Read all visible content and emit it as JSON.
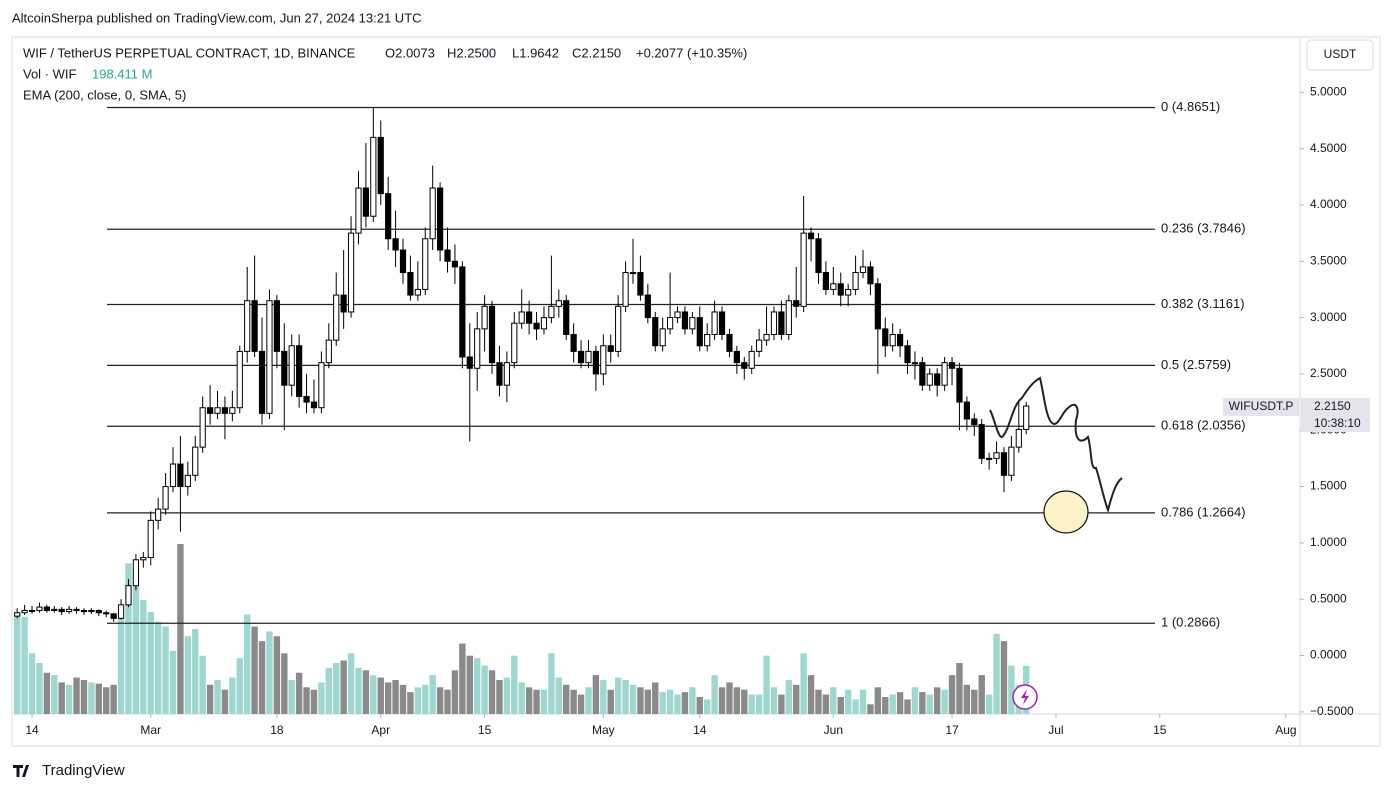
{
  "header": {
    "byline": "AltcoinSherpa published on TradingView.com, Jun 27, 2024 13:21 UTC",
    "brand": "TradingView"
  },
  "legend": {
    "symbol": "WIF / TetherUS PERPETUAL CONTRACT, 1D, BINANCE",
    "open": "O2.0073",
    "high": "H2.2500",
    "low": "L1.9642",
    "close": "C2.2150",
    "change": "+0.2077 (+10.35%)",
    "volume_name": "Vol · WIF",
    "volume_value": "198.411 M",
    "ema": "EMA (200, close, 0, SMA, 5)"
  },
  "price_axis": {
    "currency": "USDT",
    "symbol_label": "WIFUSDT.P",
    "price_label": "2.2150",
    "countdown": "10:38:10"
  },
  "chart_data": {
    "type": "candlestick",
    "up_color": "#ffffff",
    "down_color": "#000000",
    "wick_color": "#000000",
    "volume_up_color": "#9fd6cf",
    "volume_down_color": "#8a8a8a",
    "xlim": [
      -2.7,
      170.9
    ],
    "xticks": [
      {
        "value": 0,
        "label": "14"
      },
      {
        "value": 16,
        "label": "Mar"
      },
      {
        "value": 33,
        "label": "18"
      },
      {
        "value": 47,
        "label": "Apr"
      },
      {
        "value": 61,
        "label": "15"
      },
      {
        "value": 77,
        "label": "May"
      },
      {
        "value": 90,
        "label": "14"
      },
      {
        "value": 108,
        "label": "Jun"
      },
      {
        "value": 124,
        "label": "17"
      },
      {
        "value": 138,
        "label": "Jul"
      },
      {
        "value": 152,
        "label": "15"
      },
      {
        "value": 169,
        "label": "Aug"
      }
    ],
    "ylim": [
      -0.519,
      5.491
    ],
    "yticks": [
      {
        "value": 5,
        "label": "5.0000"
      },
      {
        "value": 4.5,
        "label": "4.5000"
      },
      {
        "value": 4,
        "label": "4.0000"
      },
      {
        "value": 3.5,
        "label": "3.5000"
      },
      {
        "value": 3,
        "label": "3.0000"
      },
      {
        "value": 2.5,
        "label": "2.5000"
      },
      {
        "value": 2,
        "label": "2.0000"
      },
      {
        "value": 1.5,
        "label": "1.5000"
      },
      {
        "value": 1,
        "label": "1.0000"
      },
      {
        "value": 0.5,
        "label": "0.5000"
      },
      {
        "value": 0,
        "label": "0.0000"
      },
      {
        "value": -0.5,
        "label": "−0.5000"
      }
    ],
    "fib_levels": [
      {
        "value": 4.8651,
        "label": "0 (4.8651)"
      },
      {
        "value": 3.7846,
        "label": "0.236 (3.7846)"
      },
      {
        "value": 3.1161,
        "label": "0.382 (3.1161)"
      },
      {
        "value": 2.5759,
        "label": "0.5 (2.5759)"
      },
      {
        "value": 2.0356,
        "label": "0.618 (2.0356)"
      },
      {
        "value": 1.2664,
        "label": "0.786 (1.2664)"
      },
      {
        "value": 0.2866,
        "label": "1 (0.2866)"
      }
    ],
    "x": [
      -2,
      -1,
      0,
      1,
      2,
      3,
      4,
      5,
      6,
      7,
      8,
      9,
      10,
      11,
      12,
      13,
      14,
      15,
      16,
      17,
      18,
      19,
      20,
      21,
      22,
      23,
      24,
      25,
      26,
      27,
      28,
      29,
      30,
      31,
      32,
      33,
      34,
      35,
      36,
      37,
      38,
      39,
      40,
      41,
      42,
      43,
      44,
      45,
      46,
      47,
      48,
      49,
      50,
      51,
      52,
      53,
      54,
      55,
      56,
      57,
      58,
      59,
      60,
      61,
      62,
      63,
      64,
      65,
      66,
      67,
      68,
      69,
      70,
      71,
      72,
      73,
      74,
      75,
      76,
      77,
      78,
      79,
      80,
      81,
      82,
      83,
      84,
      85,
      86,
      87,
      88,
      89,
      90,
      91,
      92,
      93,
      94,
      95,
      96,
      97,
      98,
      99,
      100,
      101,
      102,
      103,
      104,
      105,
      106,
      107,
      108,
      109,
      110,
      111,
      112,
      113,
      114,
      115,
      116,
      117,
      118,
      119,
      120,
      121,
      122,
      123,
      124,
      125,
      126,
      127,
      128,
      129,
      130,
      131,
      132,
      133,
      134
    ],
    "ohlc": [
      [
        0.35,
        0.42,
        0.33,
        0.38
      ],
      [
        0.38,
        0.45,
        0.36,
        0.4
      ],
      [
        0.4,
        0.44,
        0.37,
        0.4
      ],
      [
        0.4,
        0.47,
        0.38,
        0.43
      ],
      [
        0.43,
        0.45,
        0.38,
        0.4
      ],
      [
        0.4,
        0.44,
        0.38,
        0.41
      ],
      [
        0.41,
        0.43,
        0.36,
        0.39
      ],
      [
        0.39,
        0.44,
        0.37,
        0.41
      ],
      [
        0.41,
        0.43,
        0.37,
        0.4
      ],
      [
        0.4,
        0.42,
        0.36,
        0.39
      ],
      [
        0.39,
        0.42,
        0.37,
        0.4
      ],
      [
        0.4,
        0.41,
        0.35,
        0.38
      ],
      [
        0.38,
        0.4,
        0.34,
        0.37
      ],
      [
        0.37,
        0.38,
        0.3,
        0.33
      ],
      [
        0.33,
        0.5,
        0.32,
        0.45
      ],
      [
        0.45,
        0.68,
        0.43,
        0.62
      ],
      [
        0.62,
        0.9,
        0.58,
        0.85
      ],
      [
        0.85,
        0.92,
        0.78,
        0.87
      ],
      [
        0.87,
        1.28,
        0.8,
        1.2
      ],
      [
        1.2,
        1.4,
        1.12,
        1.3
      ],
      [
        1.3,
        1.62,
        1.25,
        1.5
      ],
      [
        1.5,
        1.85,
        1.45,
        1.7
      ],
      [
        1.7,
        1.95,
        1.1,
        1.5
      ],
      [
        1.5,
        1.72,
        1.42,
        1.6
      ],
      [
        1.6,
        1.95,
        1.55,
        1.85
      ],
      [
        1.85,
        2.3,
        1.8,
        2.2
      ],
      [
        2.2,
        2.4,
        2.05,
        2.15
      ],
      [
        2.15,
        2.35,
        2.1,
        2.2
      ],
      [
        2.2,
        2.3,
        1.92,
        2.15
      ],
      [
        2.15,
        2.35,
        2.08,
        2.2
      ],
      [
        2.2,
        2.75,
        2.15,
        2.7
      ],
      [
        2.7,
        3.45,
        2.6,
        3.15
      ],
      [
        3.15,
        3.55,
        2.65,
        2.7
      ],
      [
        2.7,
        3.0,
        2.05,
        2.15
      ],
      [
        2.15,
        3.25,
        2.1,
        3.15
      ],
      [
        3.15,
        3.2,
        2.55,
        2.7
      ],
      [
        2.7,
        2.95,
        2.0,
        2.4
      ],
      [
        2.4,
        2.85,
        2.3,
        2.75
      ],
      [
        2.75,
        2.85,
        2.2,
        2.3
      ],
      [
        2.3,
        2.5,
        2.15,
        2.25
      ],
      [
        2.25,
        2.45,
        2.15,
        2.2
      ],
      [
        2.2,
        2.7,
        2.15,
        2.6
      ],
      [
        2.6,
        2.95,
        2.55,
        2.8
      ],
      [
        2.8,
        3.4,
        2.75,
        3.2
      ],
      [
        3.2,
        3.6,
        2.9,
        3.05
      ],
      [
        3.05,
        3.9,
        3.0,
        3.75
      ],
      [
        3.75,
        4.3,
        3.65,
        4.15
      ],
      [
        4.15,
        4.55,
        3.8,
        3.9
      ],
      [
        3.9,
        4.8651,
        3.85,
        4.6
      ],
      [
        4.6,
        4.75,
        4.0,
        4.1
      ],
      [
        4.1,
        4.25,
        3.6,
        3.7
      ],
      [
        3.7,
        3.95,
        3.45,
        3.6
      ],
      [
        3.6,
        3.7,
        3.3,
        3.4
      ],
      [
        3.4,
        3.55,
        3.15,
        3.2
      ],
      [
        3.2,
        3.5,
        3.15,
        3.25
      ],
      [
        3.25,
        3.8,
        3.2,
        3.7
      ],
      [
        3.7,
        4.35,
        3.6,
        4.15
      ],
      [
        4.15,
        4.2,
        3.5,
        3.6
      ],
      [
        3.6,
        3.8,
        3.4,
        3.5
      ],
      [
        3.5,
        3.65,
        3.3,
        3.45
      ],
      [
        3.45,
        3.5,
        2.55,
        2.65
      ],
      [
        2.65,
        2.95,
        1.9,
        2.55
      ],
      [
        2.55,
        3.05,
        2.35,
        2.9
      ],
      [
        2.9,
        3.2,
        2.7,
        3.1
      ],
      [
        3.1,
        3.15,
        2.5,
        2.6
      ],
      [
        2.6,
        2.75,
        2.3,
        2.4
      ],
      [
        2.4,
        2.7,
        2.25,
        2.6
      ],
      [
        2.6,
        3.05,
        2.55,
        2.95
      ],
      [
        2.95,
        3.25,
        2.9,
        3.05
      ],
      [
        3.05,
        3.15,
        2.85,
        2.95
      ],
      [
        2.95,
        3.05,
        2.8,
        2.9
      ],
      [
        2.9,
        3.1,
        2.85,
        3.0
      ],
      [
        3.0,
        3.55,
        2.95,
        3.1
      ],
      [
        3.1,
        3.25,
        3.0,
        3.15
      ],
      [
        3.15,
        3.2,
        2.8,
        2.85
      ],
      [
        2.85,
        2.95,
        2.6,
        2.7
      ],
      [
        2.7,
        2.8,
        2.55,
        2.6
      ],
      [
        2.6,
        2.8,
        2.55,
        2.7
      ],
      [
        2.7,
        2.75,
        2.35,
        2.5
      ],
      [
        2.5,
        2.85,
        2.4,
        2.75
      ],
      [
        2.75,
        2.85,
        2.6,
        2.7
      ],
      [
        2.7,
        3.2,
        2.65,
        3.1
      ],
      [
        3.1,
        3.5,
        3.05,
        3.4
      ],
      [
        3.4,
        3.7,
        3.3,
        3.4
      ],
      [
        3.4,
        3.55,
        3.15,
        3.2
      ],
      [
        3.2,
        3.3,
        2.95,
        3.0
      ],
      [
        3.0,
        3.05,
        2.7,
        2.75
      ],
      [
        2.75,
        3.0,
        2.7,
        2.9
      ],
      [
        2.9,
        3.4,
        2.85,
        3.0
      ],
      [
        3.0,
        3.1,
        2.95,
        3.05
      ],
      [
        3.05,
        3.1,
        2.85,
        2.9
      ],
      [
        2.9,
        3.05,
        2.85,
        3.0
      ],
      [
        3.0,
        3.1,
        2.7,
        2.75
      ],
      [
        2.75,
        2.95,
        2.7,
        2.85
      ],
      [
        2.85,
        3.15,
        2.8,
        3.05
      ],
      [
        3.05,
        3.1,
        2.8,
        2.85
      ],
      [
        2.85,
        2.9,
        2.65,
        2.7
      ],
      [
        2.7,
        2.75,
        2.5,
        2.6
      ],
      [
        2.6,
        2.65,
        2.45,
        2.55
      ],
      [
        2.55,
        2.75,
        2.5,
        2.7
      ],
      [
        2.7,
        2.9,
        2.65,
        2.8
      ],
      [
        2.8,
        3.1,
        2.75,
        2.85
      ],
      [
        2.85,
        3.1,
        2.8,
        3.05
      ],
      [
        3.05,
        3.15,
        2.8,
        2.85
      ],
      [
        2.85,
        3.2,
        2.8,
        3.15
      ],
      [
        3.15,
        3.45,
        3.0,
        3.1
      ],
      [
        3.1,
        4.08,
        3.05,
        3.75
      ],
      [
        3.75,
        3.8,
        3.5,
        3.7
      ],
      [
        3.7,
        3.75,
        3.3,
        3.4
      ],
      [
        3.4,
        3.5,
        3.2,
        3.25
      ],
      [
        3.25,
        3.45,
        3.2,
        3.3
      ],
      [
        3.3,
        3.4,
        3.1,
        3.2
      ],
      [
        3.2,
        3.3,
        3.1,
        3.25
      ],
      [
        3.25,
        3.55,
        3.2,
        3.4
      ],
      [
        3.4,
        3.6,
        3.35,
        3.45
      ],
      [
        3.45,
        3.5,
        3.2,
        3.3
      ],
      [
        3.3,
        3.35,
        2.5,
        2.9
      ],
      [
        2.9,
        3.0,
        2.65,
        2.75
      ],
      [
        2.75,
        2.95,
        2.7,
        2.85
      ],
      [
        2.85,
        2.9,
        2.65,
        2.75
      ],
      [
        2.75,
        2.8,
        2.5,
        2.6
      ],
      [
        2.6,
        2.7,
        2.45,
        2.6
      ],
      [
        2.6,
        2.65,
        2.35,
        2.4
      ],
      [
        2.4,
        2.55,
        2.35,
        2.5
      ],
      [
        2.5,
        2.55,
        2.3,
        2.4
      ],
      [
        2.4,
        2.65,
        2.35,
        2.6
      ],
      [
        2.6,
        2.65,
        2.4,
        2.55
      ],
      [
        2.55,
        2.6,
        2.0,
        2.25
      ],
      [
        2.25,
        2.3,
        2.0,
        2.1
      ],
      [
        2.1,
        2.15,
        1.95,
        2.05
      ],
      [
        2.05,
        2.1,
        1.7,
        1.75
      ],
      [
        1.75,
        1.8,
        1.65,
        1.75
      ],
      [
        1.75,
        1.9,
        1.7,
        1.8
      ],
      [
        1.8,
        1.85,
        1.45,
        1.6
      ],
      [
        1.6,
        1.95,
        1.55,
        1.85
      ],
      [
        1.85,
        2.25,
        1.8,
        2.0073
      ],
      [
        2.0073,
        2.25,
        1.9642,
        2.215
      ]
    ],
    "volume": [
      410,
      400,
      250,
      210,
      170,
      160,
      130,
      120,
      150,
      140,
      130,
      125,
      110,
      120,
      390,
      620,
      600,
      470,
      420,
      380,
      360,
      260,
      700,
      320,
      350,
      240,
      120,
      140,
      100,
      150,
      230,
      410,
      360,
      300,
      340,
      320,
      250,
      140,
      170,
      110,
      100,
      130,
      190,
      210,
      220,
      250,
      190,
      180,
      160,
      150,
      130,
      140,
      120,
      90,
      110,
      120,
      160,
      110,
      100,
      180,
      290,
      240,
      230,
      200,
      180,
      140,
      150,
      240,
      130,
      110,
      100,
      100,
      250,
      150,
      120,
      100,
      80,
      110,
      160,
      140,
      100,
      150,
      140,
      120,
      110,
      100,
      130,
      90,
      100,
      80,
      90,
      110,
      70,
      60,
      160,
      110,
      130,
      110,
      100,
      80,
      80,
      240,
      110,
      80,
      140,
      120,
      250,
      160,
      100,
      80,
      110,
      70,
      100,
      60,
      100,
      40,
      110,
      70,
      80,
      90,
      60,
      110,
      90,
      80,
      110,
      100,
      160,
      210,
      120,
      100,
      160,
      80,
      330,
      300,
      200,
      120,
      198.411
    ]
  }
}
